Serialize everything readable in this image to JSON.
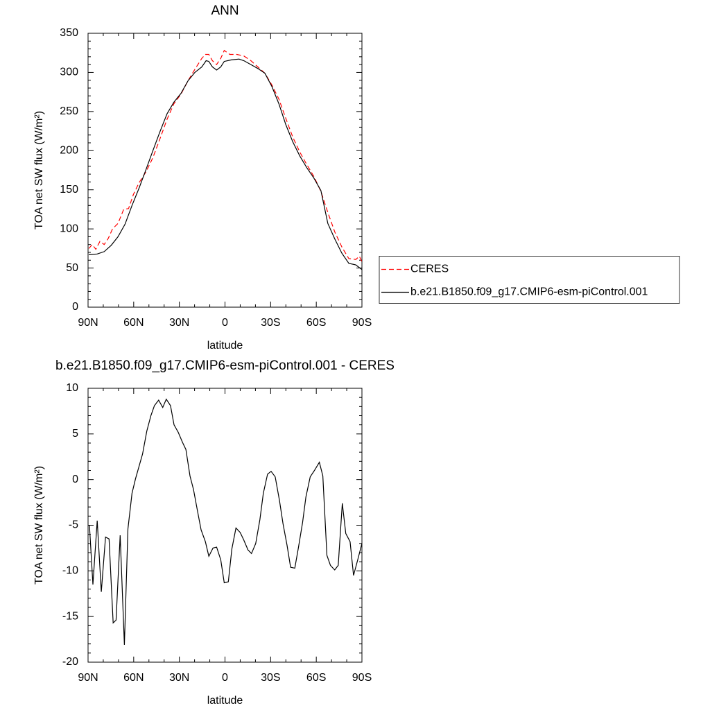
{
  "chart_data": [
    {
      "type": "line",
      "title": "ANN",
      "xlabel": "latitude",
      "ylabel": "TOA net SW flux (W/m²)",
      "xlim": [
        90,
        -90
      ],
      "ylim": [
        0,
        350
      ],
      "xticks": [
        {
          "value": 90,
          "label": "90N"
        },
        {
          "value": 60,
          "label": "60N"
        },
        {
          "value": 30,
          "label": "30N"
        },
        0,
        {
          "value": -30,
          "label": "30S"
        },
        {
          "value": -60,
          "label": "60S"
        },
        {
          "value": -90,
          "label": "90S"
        }
      ],
      "yticks": [
        0,
        50,
        100,
        150,
        200,
        250,
        300,
        350
      ],
      "legend": "right",
      "series": [
        {
          "name": "CERES",
          "color": "#ff0000",
          "line_style": "dashed",
          "x": [
            89.5,
            87.2,
            84.9,
            82.2,
            79.4,
            76.7,
            73.9,
            70.3,
            66.6,
            63.4,
            60.2,
            56.5,
            51.9,
            47.4,
            42.8,
            38.1,
            33.6,
            29.0,
            24.4,
            19.8,
            15.2,
            12.9,
            10.6,
            8.3,
            5.5,
            2.8,
            0.5,
            -3.2,
            -7.8,
            -12.4,
            -17.0,
            -21.6,
            -26.2,
            -30.8,
            -35.4,
            -40.0,
            -44.6,
            -49.2,
            -53.8,
            -58.4,
            -63.0,
            -67.6,
            -72.2,
            -76.8,
            -81.4,
            -86.0,
            -88.3,
            -90.0
          ],
          "values": [
            75,
            80,
            74,
            84,
            80,
            88,
            100,
            107,
            125,
            126,
            144,
            159,
            173,
            191,
            215,
            240,
            260,
            272,
            289,
            304,
            318,
            323,
            323,
            315,
            310,
            318,
            328,
            323,
            323,
            321,
            315,
            307,
            299,
            284,
            266,
            241,
            217,
            198,
            182,
            167,
            148,
            121,
            96,
            77,
            62,
            61,
            65,
            58
          ]
        },
        {
          "name": "b.e21.B1850.f09_g17.CMIP6-esm-piControl.001",
          "color": "#000000",
          "line_style": "solid",
          "x": [
            89.5,
            84.0,
            79.4,
            74.8,
            70.3,
            65.7,
            61.1,
            56.5,
            51.9,
            47.4,
            42.8,
            38.1,
            33.6,
            29.0,
            24.4,
            19.8,
            15.2,
            12.4,
            10.6,
            8.3,
            5.5,
            2.8,
            0.5,
            -4.1,
            -9.2,
            -12.4,
            -17.0,
            -21.6,
            -26.2,
            -30.8,
            -35.4,
            -40.0,
            -44.6,
            -49.2,
            -53.8,
            -58.4,
            -63.0,
            -67.6,
            -72.2,
            -76.8,
            -81.4,
            -86.0,
            -90.0
          ],
          "values": [
            67,
            68,
            71,
            79,
            90,
            106,
            130,
            152,
            176,
            200,
            224,
            247,
            262,
            273,
            289,
            300,
            307,
            315,
            314,
            307,
            303,
            307,
            314,
            316,
            317,
            315,
            310,
            305,
            299,
            282,
            260,
            233,
            211,
            193,
            178,
            165,
            149,
            107,
            87,
            69,
            56,
            54,
            48
          ]
        }
      ]
    },
    {
      "type": "line",
      "title": "b.e21.B1850.f09_g17.CMIP6-esm-piControl.001 - CERES",
      "xlabel": "latitude",
      "ylabel": "TOA net SW flux (W/m²)",
      "xlim": [
        90,
        -90
      ],
      "ylim": [
        -20,
        10
      ],
      "xticks": [
        {
          "value": 90,
          "label": "90N"
        },
        {
          "value": 60,
          "label": "60N"
        },
        {
          "value": 30,
          "label": "30N"
        },
        0,
        {
          "value": -30,
          "label": "30S"
        },
        {
          "value": -60,
          "label": "60S"
        },
        {
          "value": -90,
          "label": "90S"
        }
      ],
      "yticks": [
        -20,
        -15,
        -10,
        -5,
        0,
        5,
        10
      ],
      "series": [
        {
          "color": "#000000",
          "line_style": "solid",
          "x": [
            89.1,
            86.8,
            84.0,
            81.3,
            78.5,
            76.2,
            73.5,
            71.6,
            68.9,
            66.1,
            63.8,
            61.1,
            58.8,
            54.2,
            51.4,
            48.7,
            46.4,
            43.6,
            40.9,
            38.6,
            35.8,
            33.5,
            30.8,
            28.0,
            25.7,
            23.0,
            20.7,
            18.0,
            15.7,
            12.9,
            10.6,
            7.9,
            5.5,
            2.8,
            0.5,
            -2.2,
            -4.5,
            -7.2,
            -10.0,
            -12.3,
            -15.1,
            -17.4,
            -20.2,
            -22.9,
            -25.2,
            -28.0,
            -30.3,
            -33.0,
            -35.8,
            -38.1,
            -40.8,
            -43.1,
            -45.9,
            -48.2,
            -51.0,
            -53.2,
            -56.0,
            -58.8,
            -62.0,
            -64.3,
            -67.0,
            -69.3,
            -72.1,
            -74.4,
            -77.1,
            -79.4,
            -82.2,
            -84.5,
            -87.2,
            -90.0
          ],
          "values": [
            -5.0,
            -11.5,
            -4.5,
            -12.3,
            -6.3,
            -6.5,
            -15.7,
            -15.4,
            -6.1,
            -18.1,
            -5.4,
            -1.5,
            0.1,
            2.8,
            5.3,
            7.0,
            8.1,
            8.7,
            7.9,
            8.8,
            8.1,
            6.0,
            5.2,
            4.1,
            3.3,
            0.4,
            -1.1,
            -3.5,
            -5.5,
            -6.8,
            -8.4,
            -7.5,
            -7.4,
            -8.8,
            -11.3,
            -11.2,
            -7.6,
            -5.3,
            -5.8,
            -6.6,
            -7.7,
            -8.1,
            -7.0,
            -4.4,
            -1.5,
            0.6,
            0.9,
            0.3,
            -2.3,
            -4.8,
            -7.2,
            -9.6,
            -9.7,
            -7.5,
            -4.7,
            -1.9,
            0.3,
            1.0,
            1.9,
            0.4,
            -8.3,
            -9.4,
            -9.9,
            -9.4,
            -2.6,
            -5.9,
            -6.8,
            -10.5,
            -8.8,
            -7.0
          ]
        }
      ]
    }
  ]
}
